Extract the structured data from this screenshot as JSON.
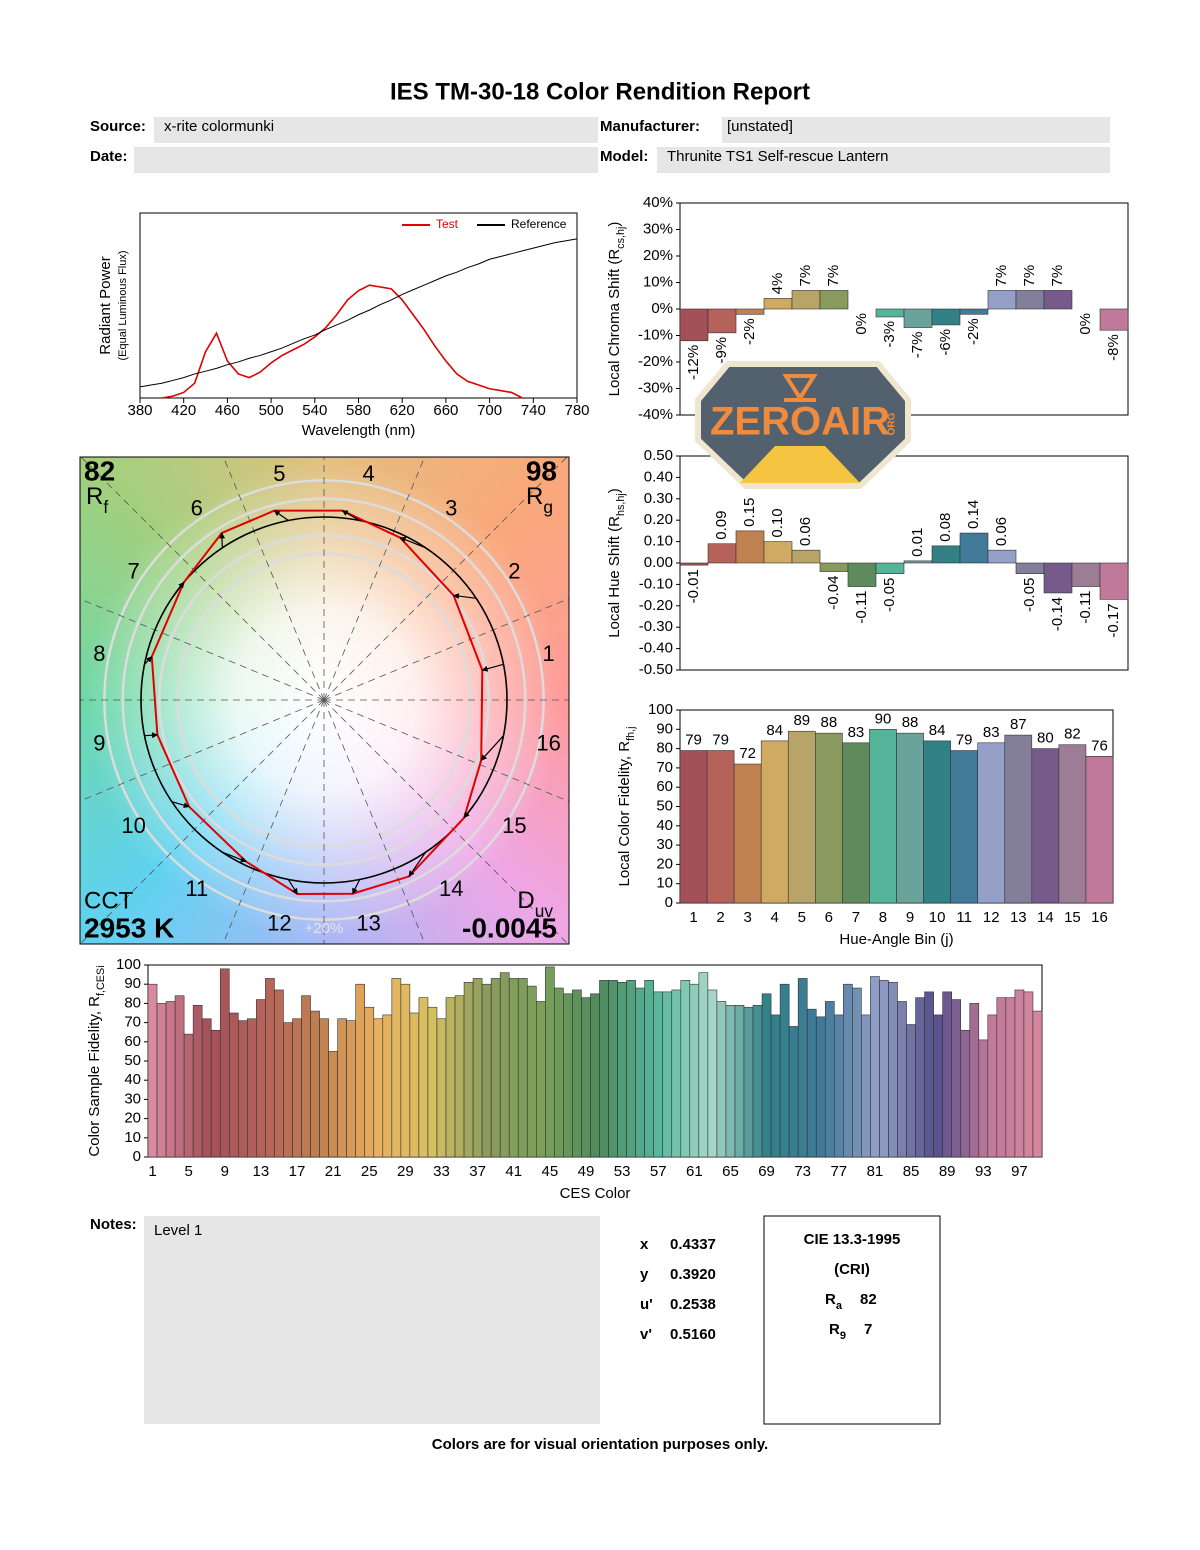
{
  "header": {
    "title": "IES TM-30-18 Color Rendition Report",
    "source_label": "Source:",
    "source": "x-rite colormunki",
    "manufacturer_label": "Manufacturer:",
    "manufacturer": "[unstated]",
    "date_label": "Date:",
    "model_label": "Model:",
    "model": "Thrunite TS1 Self-rescue Lantern"
  },
  "chart_data": [
    {
      "type": "line",
      "xlabel": "Wavelength (nm)",
      "ylabel": "Radiant Power",
      "ylabel2": "(Equal Luminous Flux)",
      "x": [
        380,
        390,
        400,
        410,
        420,
        430,
        440,
        450,
        460,
        470,
        480,
        490,
        500,
        510,
        520,
        530,
        540,
        550,
        560,
        570,
        580,
        590,
        600,
        610,
        620,
        630,
        640,
        650,
        660,
        670,
        680,
        690,
        700,
        710,
        720,
        730,
        740,
        750,
        760,
        770,
        780
      ],
      "series": [
        {
          "name": "Test",
          "color": "#e00000",
          "values": [
            null,
            null,
            0,
            0.01,
            0.03,
            0.08,
            0.25,
            0.35,
            0.2,
            0.13,
            0.11,
            0.14,
            0.19,
            0.23,
            0.26,
            0.29,
            0.33,
            0.38,
            0.45,
            0.53,
            0.58,
            0.61,
            0.6,
            0.59,
            0.53,
            0.45,
            0.37,
            0.28,
            0.2,
            0.13,
            0.09,
            0.07,
            0.05,
            0.04,
            0.03,
            0,
            null,
            null,
            null,
            null,
            null
          ]
        },
        {
          "name": "Reference",
          "color": "#000000",
          "values": [
            0.06,
            0.07,
            0.08,
            0.095,
            0.11,
            0.13,
            0.145,
            0.16,
            0.18,
            0.195,
            0.215,
            0.23,
            0.25,
            0.27,
            0.295,
            0.32,
            0.34,
            0.37,
            0.395,
            0.42,
            0.45,
            0.475,
            0.505,
            0.53,
            0.56,
            0.585,
            0.61,
            0.635,
            0.66,
            0.68,
            0.705,
            0.725,
            0.75,
            0.765,
            0.78,
            0.795,
            0.81,
            0.825,
            0.84,
            0.85,
            0.86
          ]
        }
      ],
      "xlim": [
        380,
        780
      ],
      "xticks": [
        380,
        420,
        460,
        500,
        540,
        580,
        620,
        660,
        700,
        740,
        780
      ],
      "ylim": [
        0,
        1
      ],
      "legend": "upper right"
    },
    {
      "type": "vector",
      "categories": [
        "1",
        "2",
        "3",
        "4",
        "5",
        "6",
        "7",
        "8",
        "9",
        "10",
        "11",
        "12",
        "13",
        "14",
        "15",
        "16"
      ],
      "rf": 82,
      "rf_symbol": [
        "R",
        "f"
      ],
      "rg": 98,
      "rg_symbol": [
        "R",
        "g"
      ],
      "cct_label": "CCT",
      "cct": {
        "value": 2953,
        "label": "2953 K"
      },
      "duv_symbol": [
        "D",
        "uv"
      ],
      "duv": -0.0045,
      "ring_label": "+20%",
      "rings": [
        0.8,
        0.9,
        1.1,
        1.2
      ]
    },
    {
      "type": "bar",
      "ylabel": [
        "Local Chroma Shift (R",
        "cs,hj",
        ")"
      ],
      "values": [
        -12,
        -9,
        -2,
        4,
        7,
        7,
        0,
        -3,
        -7,
        -6,
        -2,
        7,
        7,
        7,
        0,
        -8
      ],
      "value_labels": [
        "-12%",
        "-9%",
        "-2%",
        "4%",
        "7%",
        "7%",
        "0%",
        "-3%",
        "-7%",
        "-6%",
        "-2%",
        "7%",
        "7%",
        "7%",
        "0%",
        "-8%"
      ],
      "colors": [
        "#a35059",
        "#b5635a",
        "#c08150",
        "#cfaa62",
        "#b8a466",
        "#8a9a5e",
        "#5e8a5d",
        "#55b59a",
        "#6aa39b",
        "#318187",
        "#417a99",
        "#94a0c8",
        "#837e9a",
        "#765a8c",
        "#9b7d95",
        "#c0799a"
      ],
      "ylim": [
        -40,
        40
      ],
      "yticks": [
        {
          "value": -40,
          "label": "-40%"
        },
        {
          "value": -30,
          "label": "-30%"
        },
        {
          "value": -20,
          "label": "-20%"
        },
        {
          "value": -10,
          "label": "-10%"
        },
        {
          "value": 0,
          "label": "0%"
        },
        {
          "value": 10,
          "label": "10%"
        },
        {
          "value": 20,
          "label": "20%"
        },
        {
          "value": 30,
          "label": "30%"
        },
        {
          "value": 40,
          "label": "40%"
        }
      ]
    },
    {
      "type": "bar",
      "ylabel": [
        "Local Hue Shift (R",
        "hs,hj",
        ")"
      ],
      "values": [
        -0.01,
        0.09,
        0.15,
        0.1,
        0.06,
        -0.04,
        -0.11,
        -0.05,
        0.01,
        0.08,
        0.14,
        0.06,
        -0.05,
        -0.14,
        -0.11,
        -0.17
      ],
      "value_labels": [
        "-0.01",
        "0.09",
        "0.15",
        "0.10",
        "0.06",
        "-0.04",
        "-0.11",
        "-0.05",
        "0.01",
        "0.08",
        "0.14",
        "0.06",
        "-0.05",
        "-0.14",
        "-0.11",
        "-0.17"
      ],
      "colors": [
        "#a35059",
        "#b5635a",
        "#c08150",
        "#cfaa62",
        "#b8a466",
        "#8a9a5e",
        "#5e8a5d",
        "#55b59a",
        "#6aa39b",
        "#318187",
        "#417a99",
        "#94a0c8",
        "#837e9a",
        "#765a8c",
        "#9b7d95",
        "#c0799a"
      ],
      "ylim": [
        -0.5,
        0.5
      ],
      "yticks": [
        {
          "value": -0.5,
          "label": "-0.50"
        },
        {
          "value": -0.4,
          "label": "-0.40"
        },
        {
          "value": -0.3,
          "label": "-0.30"
        },
        {
          "value": -0.2,
          "label": "-0.20"
        },
        {
          "value": -0.1,
          "label": "-0.10"
        },
        {
          "value": 0,
          "label": "0.00"
        },
        {
          "value": 0.1,
          "label": "0.10"
        },
        {
          "value": 0.2,
          "label": "0.20"
        },
        {
          "value": 0.3,
          "label": "0.30"
        },
        {
          "value": 0.4,
          "label": "0.40"
        },
        {
          "value": 0.5,
          "label": "0.50"
        }
      ]
    },
    {
      "type": "bar",
      "xlabel": "Hue-Angle Bin (j)",
      "ylabel": [
        "Local Color Fidelity, R",
        "fh,j"
      ],
      "categories": [
        "1",
        "2",
        "3",
        "4",
        "5",
        "6",
        "7",
        "8",
        "9",
        "10",
        "11",
        "12",
        "13",
        "14",
        "15",
        "16"
      ],
      "values": [
        79,
        79,
        72,
        84,
        89,
        88,
        83,
        90,
        88,
        84,
        79,
        83,
        87,
        80,
        82,
        76
      ],
      "colors": [
        "#a35059",
        "#b5635a",
        "#c08150",
        "#cfaa62",
        "#b8a466",
        "#8a9a5e",
        "#5e8a5d",
        "#55b59a",
        "#6aa39b",
        "#318187",
        "#417a99",
        "#94a0c8",
        "#837e9a",
        "#765a8c",
        "#9b7d95",
        "#c0799a"
      ],
      "ylim": [
        0,
        100
      ],
      "yticks": [
        0,
        10,
        20,
        30,
        40,
        50,
        60,
        70,
        80,
        90,
        100
      ]
    },
    {
      "type": "bar",
      "xlabel": "CES Color",
      "ylabel": [
        "Color Sample Fidelity, R",
        "f,CESi"
      ],
      "categories": [
        "1",
        null,
        null,
        null,
        "5",
        null,
        null,
        null,
        "9",
        null,
        null,
        null,
        "13",
        null,
        null,
        null,
        "17",
        null,
        null,
        null,
        "21",
        null,
        null,
        null,
        "25",
        null,
        null,
        null,
        "29",
        null,
        null,
        null,
        "33",
        null,
        null,
        null,
        "37",
        null,
        null,
        null,
        "41",
        null,
        null,
        null,
        "45",
        null,
        null,
        null,
        "49",
        null,
        null,
        null,
        "53",
        null,
        null,
        null,
        "57",
        null,
        null,
        null,
        "61",
        null,
        null,
        null,
        "65",
        null,
        null,
        null,
        "69",
        null,
        null,
        null,
        "73",
        null,
        null,
        null,
        "77",
        null,
        null,
        null,
        "81",
        null,
        null,
        null,
        "85",
        null,
        null,
        null,
        "89",
        null,
        null,
        null,
        "93",
        null,
        null,
        null,
        "97",
        null,
        null
      ],
      "values": [
        90,
        80,
        81,
        84,
        64,
        79,
        72,
        66,
        98,
        75,
        71,
        72,
        82,
        93,
        87,
        70,
        72,
        84,
        76,
        72,
        55,
        72,
        71,
        90,
        78,
        72,
        74,
        93,
        90,
        75,
        83,
        78,
        72,
        83,
        84,
        91,
        93,
        90,
        93,
        96,
        93,
        93,
        89,
        81,
        99,
        88,
        85,
        87,
        83,
        85,
        92,
        92,
        91,
        92,
        88,
        92,
        86,
        86,
        87,
        92,
        90,
        96,
        87,
        81,
        79,
        79,
        78,
        79,
        85,
        74,
        90,
        68,
        93,
        77,
        73,
        81,
        74,
        90,
        88,
        74,
        94,
        92,
        91,
        81,
        69,
        83,
        86,
        74,
        86,
        82,
        66,
        80,
        61,
        74,
        83,
        83,
        87,
        86,
        76
      ],
      "colors": [
        "#d98aa0",
        "#a35059",
        "#b5635a",
        "#c08150",
        "#e8b060",
        "#d6c060",
        "#8a9a5e",
        "#7aa05a",
        "#4f8a5d",
        "#55b59a",
        "#a8d8c8",
        "#318187",
        "#417a99",
        "#94a0c8",
        "#55508a",
        "#c0799a"
      ],
      "ylim": [
        0,
        100
      ],
      "yticks": [
        0,
        10,
        20,
        30,
        40,
        50,
        60,
        70,
        80,
        90,
        100
      ]
    }
  ],
  "notes": {
    "label": "Notes:",
    "text": "Level 1"
  },
  "chromaticity": {
    "labels": [
      "x",
      "y",
      "u'",
      "v'"
    ],
    "values": [
      "0.4337",
      "0.3920",
      "0.2538",
      "0.5160"
    ]
  },
  "cri": {
    "title": "CIE 13.3-1995",
    "subtitle": "(CRI)",
    "ra_symbol": [
      "R",
      "a"
    ],
    "ra": 82,
    "r9_symbol": [
      "R",
      "9"
    ],
    "r9": 7
  },
  "watermark": {
    "text": "ZEROAIR",
    "sub": "ORG"
  },
  "footer": "Colors are for visual orientation purposes only."
}
